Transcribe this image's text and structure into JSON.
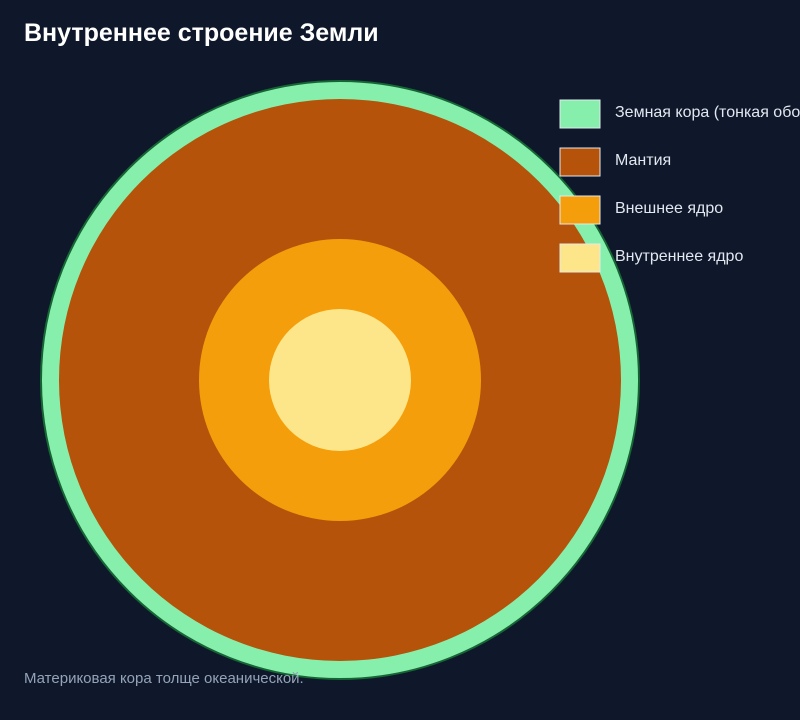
{
  "title": "Внутреннее строение Земли",
  "note": "Материковая кора толще океанической.",
  "layers": [
    {
      "name": "Земная кора (тонкая оболочка)",
      "color": "#86efac",
      "stroke": "#166534"
    },
    {
      "name": "Мантия",
      "color": "#b45309"
    },
    {
      "name": "Внешнее ядро",
      "color": "#f59e0b"
    },
    {
      "name": "Внутреннее ядро",
      "color": "#fde68a"
    }
  ],
  "legend": {
    "items": [
      {
        "label": "Земная кора (тонкая оболочка)",
        "color": "#86efac"
      },
      {
        "label": "Мантия",
        "color": "#b45309"
      },
      {
        "label": "Внешнее ядро",
        "color": "#f59e0b"
      },
      {
        "label": "Внутреннее ядро",
        "color": "#fde68a"
      }
    ]
  }
}
